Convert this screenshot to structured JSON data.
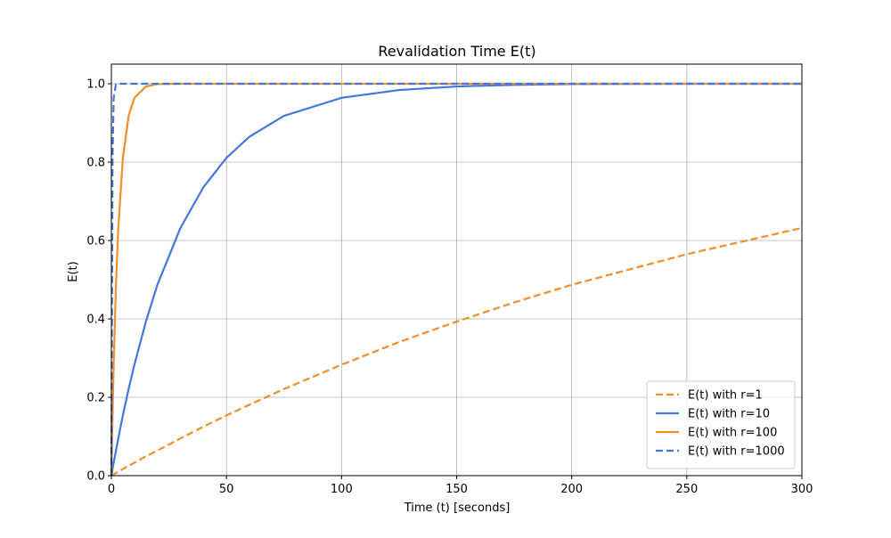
{
  "chart_data": {
    "type": "line",
    "title": "Revalidation Time E(t)",
    "xlabel": "Time (t) [seconds]",
    "ylabel": "E(t)",
    "xlim": [
      0,
      300
    ],
    "ylim": [
      0.0,
      1.05
    ],
    "xticks": [
      0,
      50,
      100,
      150,
      200,
      250,
      300
    ],
    "xtick_labels": [
      "0",
      "50",
      "100",
      "150",
      "200",
      "250",
      "300"
    ],
    "yticks": [
      0.0,
      0.2,
      0.4,
      0.6,
      0.8,
      1.0
    ],
    "ytick_labels": [
      "0.0",
      "0.2",
      "0.4",
      "0.6",
      "0.8",
      "1.0"
    ],
    "grid": true,
    "legend_position": "lower-right",
    "x": [
      0,
      0.5,
      1,
      2,
      3,
      5,
      7.5,
      10,
      15,
      20,
      30,
      40,
      50,
      60,
      75,
      100,
      125,
      150,
      175,
      200,
      250,
      300
    ],
    "series": [
      {
        "name": "E(t) with r=1",
        "color": "#f28e2b",
        "dash": "dashed",
        "values": [
          0.0,
          0.002,
          0.003,
          0.007,
          0.01,
          0.017,
          0.025,
          0.033,
          0.049,
          0.064,
          0.095,
          0.125,
          0.154,
          0.181,
          0.221,
          0.283,
          0.341,
          0.393,
          0.442,
          0.487,
          0.565,
          0.632
        ]
      },
      {
        "name": "E(t) with r=10",
        "color": "#4477dd",
        "dash": "solid",
        "values": [
          0.0,
          0.017,
          0.033,
          0.064,
          0.095,
          0.154,
          0.221,
          0.283,
          0.393,
          0.487,
          0.632,
          0.736,
          0.811,
          0.865,
          0.918,
          0.964,
          0.984,
          0.993,
          0.997,
          0.999,
          1.0,
          1.0
        ]
      },
      {
        "name": "E(t) with r=100",
        "color": "#f28e2b",
        "dash": "solid",
        "values": [
          0.0,
          0.154,
          0.283,
          0.487,
          0.632,
          0.811,
          0.918,
          0.964,
          0.993,
          0.999,
          1.0,
          1.0,
          1.0,
          1.0,
          1.0,
          1.0,
          1.0,
          1.0,
          1.0,
          1.0,
          1.0,
          1.0
        ]
      },
      {
        "name": "E(t) with r=1000",
        "color": "#4477dd",
        "dash": "dashed",
        "values": [
          0.0,
          0.811,
          0.964,
          0.999,
          1.0,
          1.0,
          1.0,
          1.0,
          1.0,
          1.0,
          1.0,
          1.0,
          1.0,
          1.0,
          1.0,
          1.0,
          1.0,
          1.0,
          1.0,
          1.0,
          1.0,
          1.0
        ]
      }
    ]
  }
}
